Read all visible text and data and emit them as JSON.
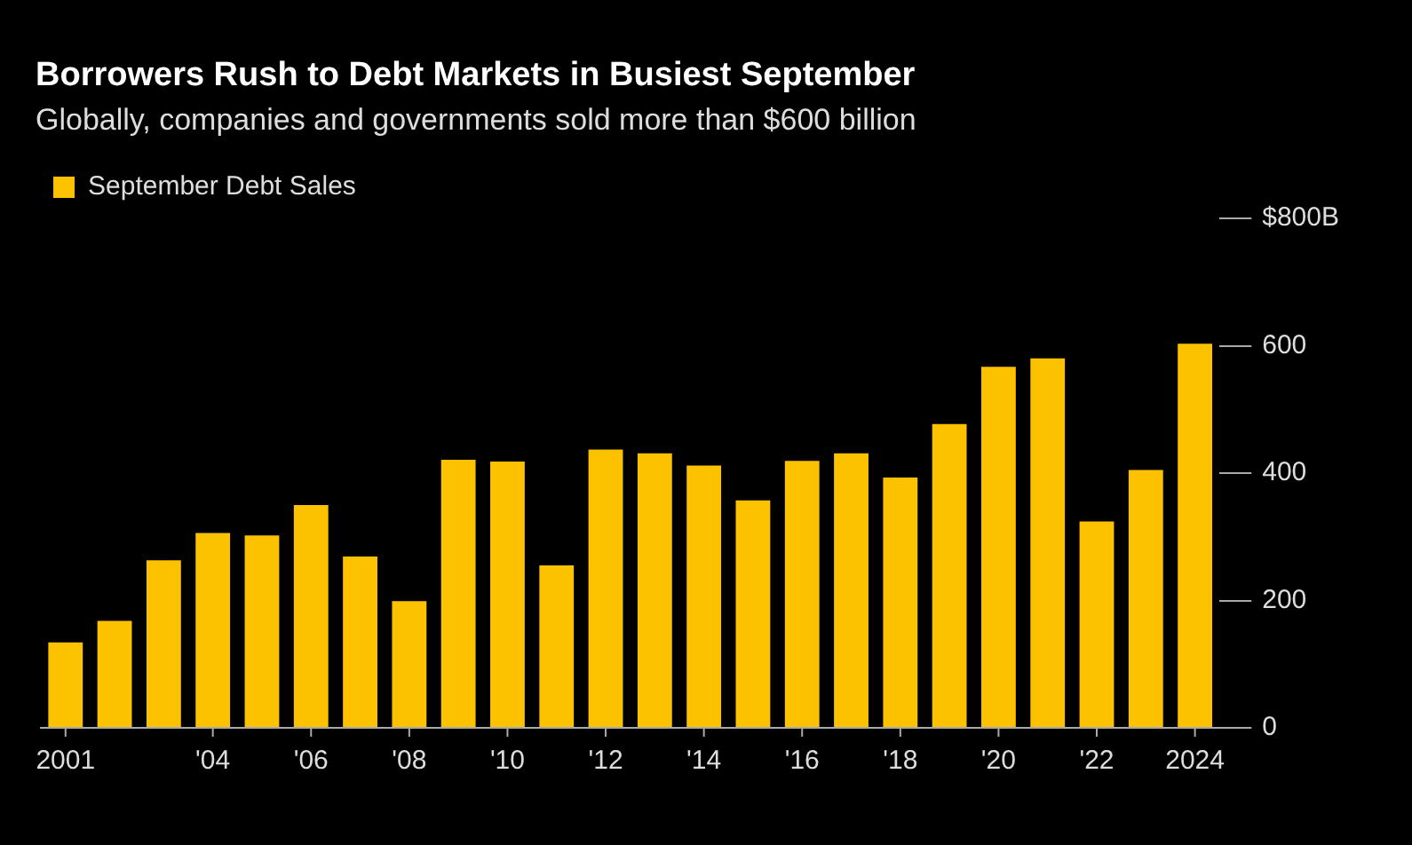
{
  "chart_data": {
    "type": "bar",
    "title": "Borrowers Rush to Debt Markets in Busiest September",
    "subtitle": "Globally, companies and governments sold more than $600 billion",
    "categories": [
      "2001",
      null,
      null,
      "'04",
      null,
      "'06",
      null,
      "'08",
      null,
      "'10",
      null,
      "'12",
      null,
      "'14",
      null,
      "'16",
      null,
      "'18",
      null,
      "'20",
      null,
      "'22",
      null,
      "2024"
    ],
    "series": [
      {
        "name": "September Debt Sales",
        "color": "#fcc200",
        "values": [
          134,
          168,
          263,
          306,
          302,
          350,
          269,
          199,
          421,
          418,
          255,
          437,
          431,
          412,
          357,
          419,
          431,
          393,
          477,
          567,
          580,
          324,
          405,
          603
        ]
      }
    ],
    "ylim": [
      0,
      800
    ],
    "yticks": [
      0,
      200,
      400,
      600,
      {
        "value": 800,
        "label": "$800B"
      }
    ],
    "grid": false,
    "legend": "top left"
  }
}
